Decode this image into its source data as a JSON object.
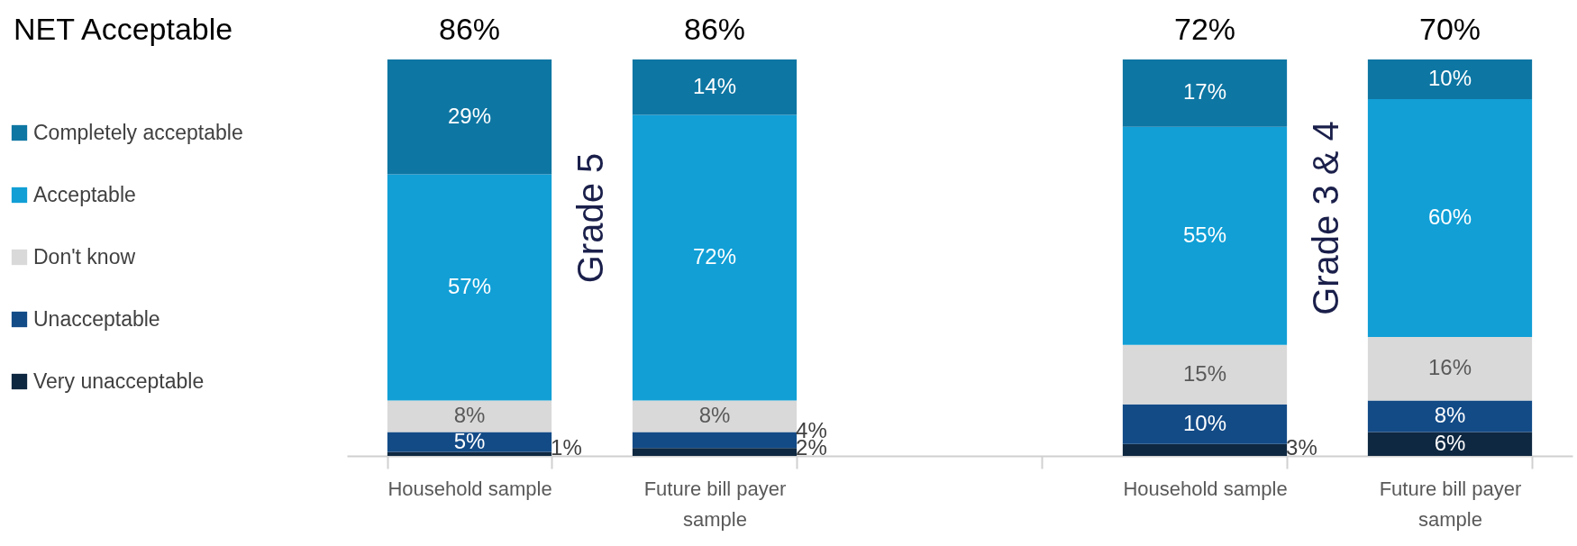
{
  "chart_data": {
    "type": "bar",
    "stacked": true,
    "title": "NET Acceptable",
    "categories": [
      "Household sample",
      "Future bill payer sample",
      null,
      "Household sample",
      "Future bill payer sample"
    ],
    "series": [
      {
        "name": "Very unacceptable",
        "color": "#0f2841",
        "values": [
          1,
          2,
          null,
          3,
          6
        ],
        "value_labels": [
          "1%",
          "2%",
          null,
          "3%",
          "6%"
        ]
      },
      {
        "name": "Unacceptable",
        "color": "#134b87",
        "values": [
          5,
          4,
          null,
          10,
          8
        ],
        "value_labels": [
          "5%",
          "4%",
          null,
          "10%",
          "8%"
        ]
      },
      {
        "name": "Don't know",
        "color": "#d9d9d9",
        "values": [
          8,
          8,
          null,
          15,
          16
        ],
        "value_labels": [
          "8%",
          "8%",
          null,
          "15%",
          "16%"
        ]
      },
      {
        "name": "Acceptable",
        "color": "#119fd6",
        "values": [
          57,
          72,
          null,
          55,
          60
        ],
        "value_labels": [
          "57%",
          "72%",
          null,
          "55%",
          "60%"
        ]
      },
      {
        "name": "Completely acceptable",
        "color": "#0e76a3",
        "values": [
          29,
          14,
          null,
          17,
          10
        ],
        "value_labels": [
          "29%",
          "14%",
          null,
          "17%",
          "10%"
        ]
      }
    ],
    "legend": "left",
    "grid": false,
    "annotations": [
      "Grade 5",
      "Grade 3 & 4",
      "86%",
      "86%",
      "72%",
      "70%"
    ]
  }
}
